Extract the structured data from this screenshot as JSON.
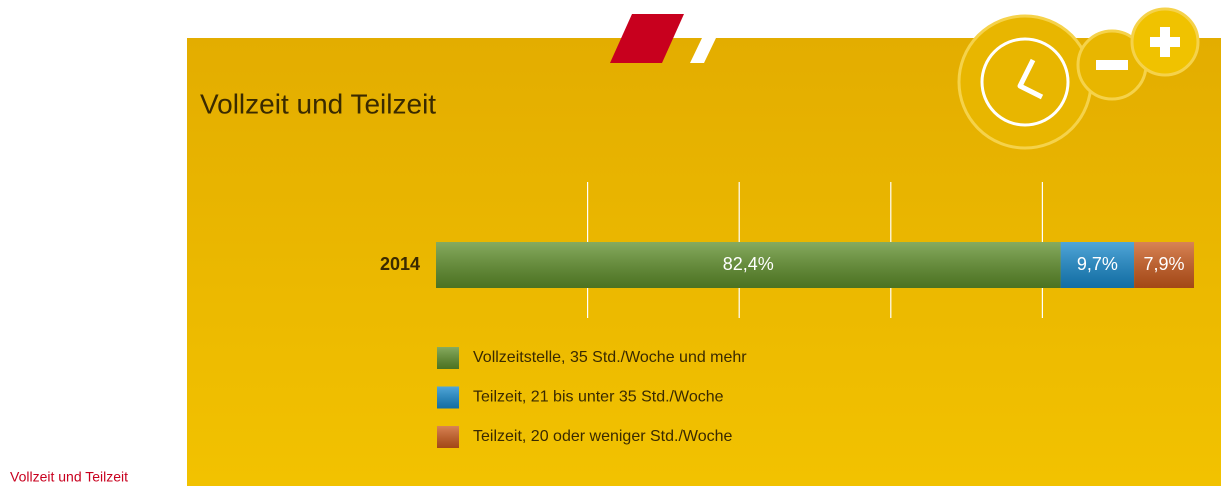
{
  "caption": "Vollzeit und Teilzeit",
  "chart_data": {
    "type": "stacked-bar-horizontal",
    "title": "Vollzeit und Teilzeit",
    "categories": [
      "2014"
    ],
    "series": [
      {
        "name": "Vollzeitstelle, 35 Std./Woche und mehr",
        "color": "#5f8f2a",
        "values": [
          82.4
        ],
        "value_labels": [
          "82,4%"
        ]
      },
      {
        "name": "Teilzeit, 21 bis unter 35 Std./Woche",
        "color": "#1789cc",
        "values": [
          9.7
        ],
        "value_labels": [
          "9,7%"
        ]
      },
      {
        "name": "Teilzeit, 20 oder weniger Std./Woche",
        "color": "#cc5a1c",
        "values": [
          7.9
        ],
        "value_labels": [
          "7,9%"
        ]
      }
    ],
    "xlim": [
      0,
      100
    ],
    "xticks": [
      20,
      40,
      60,
      80
    ],
    "grid": true
  }
}
